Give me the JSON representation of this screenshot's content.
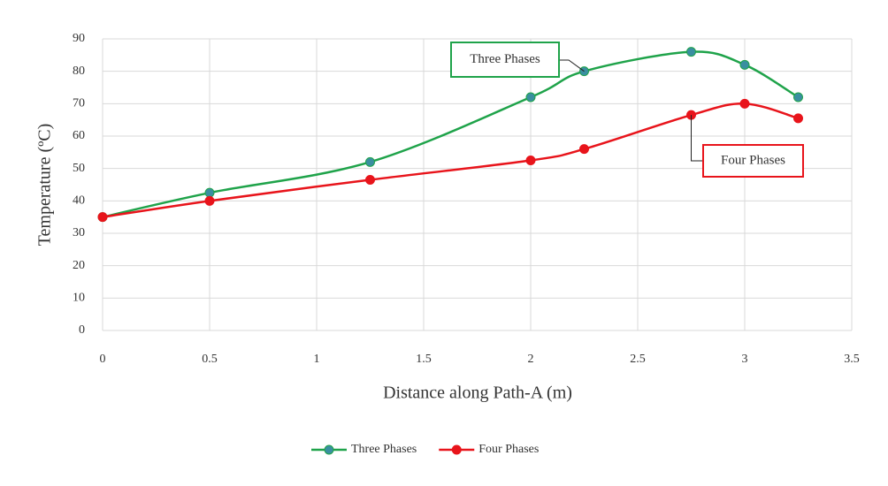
{
  "chart_data": {
    "type": "line",
    "x_label": "Distance along Path-A (m)",
    "y_label": "Temperature (ºC)",
    "x": [
      0,
      0.5,
      1.25,
      2,
      2.25,
      2.75,
      3,
      3.25
    ],
    "series": [
      {
        "name": "Three Phases",
        "color": "#1fa34a",
        "marker_color": "#3a8fa0",
        "values": [
          35,
          42.5,
          52,
          72,
          80,
          86,
          82,
          72
        ]
      },
      {
        "name": "Four Phases",
        "color": "#e8141b",
        "marker_color": "#e8141b",
        "values": [
          35,
          40,
          46.5,
          52.5,
          56,
          66.5,
          70,
          65.5
        ]
      }
    ],
    "annotations": [
      "Three Phases",
      "Four Phases"
    ],
    "xlim": [
      0,
      3.5
    ],
    "xticks": [
      0,
      0.5,
      1,
      1.5,
      2,
      2.5,
      3,
      3.5
    ],
    "ylim": [
      0,
      90
    ],
    "yticks": [
      0,
      10,
      20,
      30,
      40,
      50,
      60,
      70,
      80,
      90
    ],
    "grid": true,
    "smooth": true,
    "legend": "bottom"
  }
}
